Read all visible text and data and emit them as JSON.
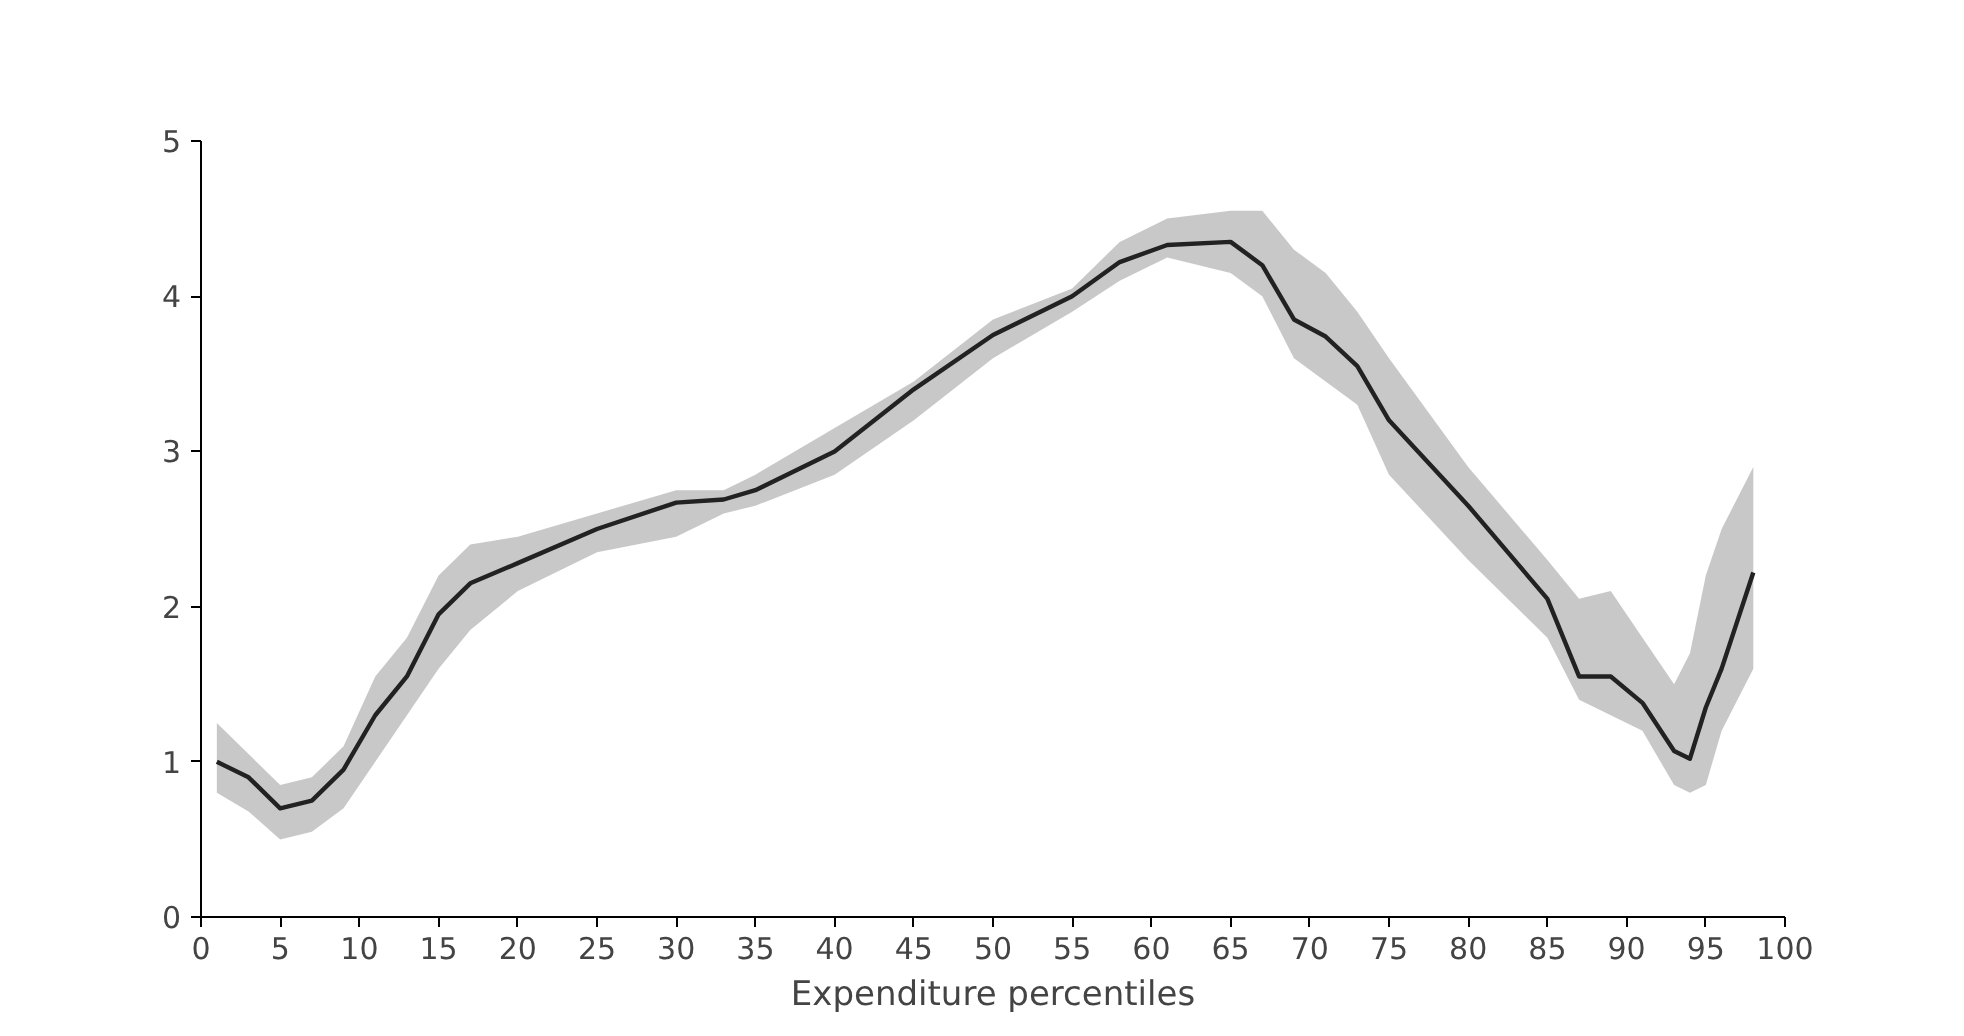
{
  "chart_data": {
    "type": "line",
    "xlabel": "Expenditure percentiles",
    "xlim": [
      0,
      100
    ],
    "ylim": [
      0,
      5
    ],
    "xticks": [
      0,
      5,
      10,
      15,
      20,
      25,
      30,
      35,
      40,
      45,
      50,
      55,
      60,
      65,
      70,
      75,
      80,
      85,
      90,
      95,
      100
    ],
    "yticks": [
      0,
      1,
      2,
      3,
      4,
      5
    ],
    "grid": false,
    "marker": "none",
    "line_style": "solid",
    "series": [
      {
        "color": "#222222",
        "x": [
          1,
          3,
          5,
          7,
          9,
          11,
          13,
          15,
          17,
          20,
          25,
          30,
          33,
          35,
          40,
          45,
          50,
          55,
          58,
          61,
          65,
          67,
          69,
          71,
          73,
          75,
          80,
          85,
          87,
          89,
          91,
          93,
          94,
          95,
          96,
          98
        ],
        "values": [
          1.0,
          0.9,
          0.7,
          0.75,
          0.95,
          1.3,
          1.55,
          1.95,
          2.15,
          2.28,
          2.5,
          2.67,
          2.69,
          2.75,
          3.0,
          3.4,
          3.75,
          4.0,
          4.22,
          4.33,
          4.35,
          4.2,
          3.85,
          3.74,
          3.55,
          3.2,
          2.65,
          2.05,
          1.55,
          1.55,
          1.38,
          1.07,
          1.02,
          1.35,
          1.6,
          2.22
        ],
        "lower": [
          0.8,
          0.68,
          0.5,
          0.55,
          0.7,
          1.0,
          1.3,
          1.6,
          1.85,
          2.1,
          2.35,
          2.45,
          2.6,
          2.65,
          2.85,
          3.2,
          3.6,
          3.9,
          4.1,
          4.25,
          4.15,
          4.0,
          3.6,
          3.45,
          3.3,
          2.85,
          2.3,
          1.8,
          1.4,
          1.3,
          1.2,
          0.85,
          0.8,
          0.85,
          1.2,
          1.6
        ],
        "upper": [
          1.25,
          1.05,
          0.85,
          0.9,
          1.1,
          1.55,
          1.8,
          2.2,
          2.4,
          2.45,
          2.6,
          2.75,
          2.75,
          2.85,
          3.15,
          3.45,
          3.85,
          4.05,
          4.35,
          4.5,
          4.55,
          4.55,
          4.3,
          4.15,
          3.9,
          3.6,
          2.9,
          2.3,
          2.05,
          2.1,
          1.8,
          1.5,
          1.7,
          2.2,
          2.5,
          2.9
        ]
      }
    ]
  }
}
